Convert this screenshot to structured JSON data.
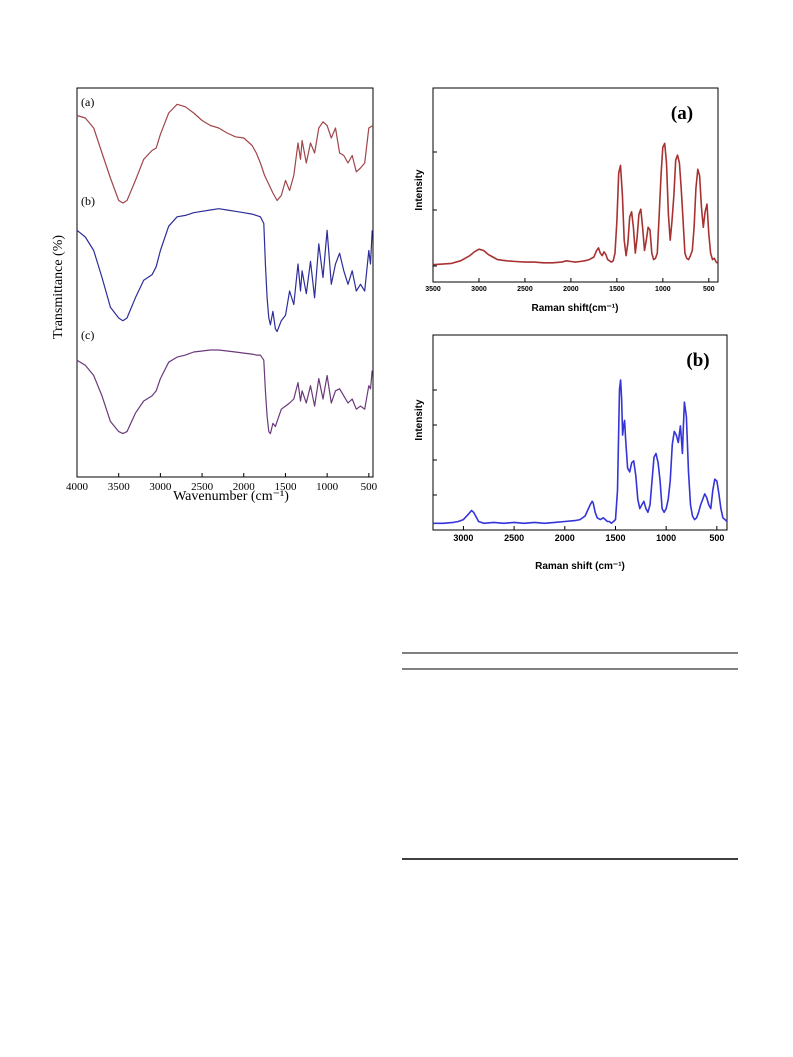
{
  "colors": {
    "ftir_a": "#a0464a",
    "ftir_b": "#2d2d9a",
    "ftir_c": "#6a3a7a",
    "raman_a": "#a83232",
    "raman_b": "#3434d8",
    "axis": "#000000"
  },
  "chart_data": [
    {
      "type": "line",
      "xlabel": "Wavenumber (cm⁻¹)",
      "ylabel": "Transmittance (%)",
      "xlim": [
        4000,
        450
      ],
      "x_ticks": [
        "4000",
        "3500",
        "3000",
        "2500",
        "2000",
        "1500",
        "1000",
        "500"
      ],
      "x_tick_values": [
        4000,
        3500,
        3000,
        2500,
        2000,
        1500,
        1000,
        500
      ],
      "y_scale": "arbitrary units, curves stacked with offsets",
      "grid": false,
      "series": [
        {
          "name": "(a)",
          "x": [
            4000,
            3900,
            3800,
            3700,
            3600,
            3500,
            3450,
            3400,
            3300,
            3200,
            3100,
            3050,
            3000,
            2900,
            2800,
            2700,
            2600,
            2500,
            2400,
            2300,
            2200,
            2100,
            2000,
            1900,
            1850,
            1800,
            1750,
            1700,
            1650,
            1600,
            1550,
            1500,
            1450,
            1400,
            1350,
            1320,
            1300,
            1250,
            1200,
            1150,
            1100,
            1050,
            1000,
            950,
            900,
            850,
            800,
            750,
            700,
            650,
            600,
            550,
            500,
            450
          ],
          "y": [
            0.9,
            0.88,
            0.8,
            0.6,
            0.4,
            0.22,
            0.2,
            0.22,
            0.38,
            0.55,
            0.62,
            0.64,
            0.75,
            0.92,
            0.99,
            0.97,
            0.92,
            0.86,
            0.82,
            0.8,
            0.76,
            0.73,
            0.72,
            0.66,
            0.6,
            0.52,
            0.42,
            0.35,
            0.28,
            0.22,
            0.26,
            0.38,
            0.3,
            0.42,
            0.68,
            0.55,
            0.7,
            0.52,
            0.68,
            0.6,
            0.8,
            0.85,
            0.82,
            0.72,
            0.8,
            0.6,
            0.58,
            0.52,
            0.58,
            0.45,
            0.48,
            0.52,
            0.8,
            0.82
          ]
        },
        {
          "name": "(b)",
          "x": [
            4000,
            3900,
            3800,
            3700,
            3600,
            3500,
            3450,
            3400,
            3300,
            3200,
            3100,
            3050,
            3000,
            2900,
            2800,
            2700,
            2600,
            2500,
            2400,
            2300,
            2200,
            2100,
            2000,
            1900,
            1850,
            1800,
            1760,
            1740,
            1720,
            1700,
            1680,
            1650,
            1620,
            1600,
            1550,
            1500,
            1450,
            1400,
            1350,
            1320,
            1300,
            1250,
            1200,
            1150,
            1100,
            1050,
            1000,
            950,
            900,
            850,
            800,
            750,
            700,
            650,
            600,
            550,
            500,
            480,
            460
          ],
          "y": [
            0.85,
            0.8,
            0.7,
            0.5,
            0.28,
            0.2,
            0.18,
            0.2,
            0.35,
            0.48,
            0.52,
            0.58,
            0.7,
            0.88,
            0.95,
            0.96,
            0.98,
            0.99,
            1.0,
            1.01,
            1.0,
            0.99,
            0.98,
            0.97,
            0.96,
            0.95,
            0.9,
            0.6,
            0.35,
            0.2,
            0.15,
            0.25,
            0.12,
            0.1,
            0.18,
            0.22,
            0.4,
            0.3,
            0.6,
            0.4,
            0.55,
            0.38,
            0.62,
            0.35,
            0.75,
            0.5,
            0.85,
            0.45,
            0.6,
            0.68,
            0.55,
            0.45,
            0.55,
            0.4,
            0.45,
            0.4,
            0.7,
            0.6,
            0.85
          ]
        },
        {
          "name": "(c)",
          "x": [
            4000,
            3900,
            3800,
            3700,
            3600,
            3500,
            3450,
            3400,
            3300,
            3200,
            3100,
            3050,
            3000,
            2900,
            2800,
            2700,
            2600,
            2500,
            2400,
            2300,
            2200,
            2100,
            2000,
            1900,
            1850,
            1800,
            1760,
            1740,
            1720,
            1700,
            1680,
            1650,
            1620,
            1600,
            1550,
            1500,
            1450,
            1400,
            1350,
            1320,
            1300,
            1250,
            1200,
            1150,
            1100,
            1050,
            1000,
            950,
            900,
            850,
            800,
            750,
            700,
            650,
            600,
            550,
            500,
            480,
            460
          ],
          "y": [
            0.9,
            0.85,
            0.75,
            0.55,
            0.3,
            0.2,
            0.18,
            0.2,
            0.38,
            0.5,
            0.55,
            0.6,
            0.72,
            0.88,
            0.93,
            0.95,
            0.98,
            0.99,
            1.0,
            1.0,
            0.99,
            0.98,
            0.97,
            0.96,
            0.95,
            0.95,
            0.9,
            0.6,
            0.35,
            0.2,
            0.18,
            0.28,
            0.25,
            0.3,
            0.42,
            0.45,
            0.48,
            0.52,
            0.68,
            0.5,
            0.6,
            0.48,
            0.65,
            0.45,
            0.72,
            0.52,
            0.75,
            0.48,
            0.6,
            0.62,
            0.55,
            0.48,
            0.52,
            0.42,
            0.45,
            0.42,
            0.65,
            0.62,
            0.8
          ]
        }
      ]
    },
    {
      "type": "line",
      "title": "(a)",
      "xlabel": "Raman shift(cm⁻¹)",
      "ylabel": "Intensity",
      "xlim": [
        3500,
        400
      ],
      "x_ticks": [
        "3500",
        "3000",
        "2500",
        "2000",
        "1500",
        "1000",
        "500"
      ],
      "x_tick_values": [
        3500,
        3000,
        2500,
        2000,
        1500,
        1000,
        500
      ],
      "ylim": [
        0,
        1
      ],
      "grid": false,
      "series": [
        {
          "x": [
            3500,
            3300,
            3200,
            3100,
            3050,
            3000,
            2950,
            2900,
            2850,
            2800,
            2700,
            2600,
            2500,
            2400,
            2300,
            2200,
            2100,
            2050,
            2000,
            1950,
            1900,
            1850,
            1800,
            1750,
            1720,
            1700,
            1680,
            1660,
            1640,
            1620,
            1600,
            1580,
            1560,
            1540,
            1520,
            1500,
            1480,
            1460,
            1440,
            1420,
            1400,
            1380,
            1360,
            1340,
            1320,
            1300,
            1280,
            1260,
            1240,
            1220,
            1200,
            1180,
            1160,
            1140,
            1120,
            1100,
            1080,
            1060,
            1040,
            1020,
            1000,
            980,
            960,
            940,
            920,
            900,
            880,
            860,
            840,
            820,
            800,
            780,
            760,
            740,
            720,
            700,
            680,
            660,
            640,
            620,
            600,
            580,
            560,
            540,
            520,
            500,
            480,
            460,
            440,
            420,
            400
          ],
          "y": [
            0.01,
            0.02,
            0.04,
            0.08,
            0.11,
            0.13,
            0.12,
            0.09,
            0.07,
            0.05,
            0.04,
            0.035,
            0.03,
            0.03,
            0.025,
            0.025,
            0.03,
            0.04,
            0.035,
            0.03,
            0.035,
            0.04,
            0.05,
            0.07,
            0.12,
            0.14,
            0.1,
            0.08,
            0.11,
            0.09,
            0.05,
            0.04,
            0.03,
            0.04,
            0.1,
            0.35,
            0.72,
            0.78,
            0.55,
            0.2,
            0.08,
            0.18,
            0.38,
            0.42,
            0.3,
            0.1,
            0.22,
            0.4,
            0.44,
            0.3,
            0.12,
            0.2,
            0.3,
            0.28,
            0.1,
            0.05,
            0.06,
            0.1,
            0.4,
            0.7,
            0.92,
            0.95,
            0.8,
            0.4,
            0.2,
            0.35,
            0.55,
            0.82,
            0.86,
            0.8,
            0.6,
            0.35,
            0.1,
            0.06,
            0.05,
            0.08,
            0.12,
            0.3,
            0.6,
            0.75,
            0.7,
            0.45,
            0.3,
            0.42,
            0.48,
            0.25,
            0.1,
            0.05,
            0.06,
            0.03,
            0.02
          ]
        }
      ]
    },
    {
      "type": "line",
      "title": "(b)",
      "xlabel": "Raman shift (cm⁻¹)",
      "ylabel": "Intensity",
      "xlim": [
        3300,
        400
      ],
      "x_ticks": [
        "3000",
        "2500",
        "2000",
        "1500",
        "1000",
        "500"
      ],
      "x_tick_values": [
        3000,
        2500,
        2000,
        1500,
        1000,
        500
      ],
      "ylim": [
        0,
        1
      ],
      "grid": false,
      "series": [
        {
          "x": [
            3300,
            3200,
            3100,
            3050,
            3000,
            2950,
            2920,
            2900,
            2870,
            2850,
            2800,
            2700,
            2600,
            2500,
            2400,
            2300,
            2200,
            2100,
            2000,
            1900,
            1850,
            1800,
            1750,
            1730,
            1720,
            1700,
            1680,
            1650,
            1620,
            1600,
            1580,
            1560,
            1540,
            1520,
            1500,
            1480,
            1460,
            1450,
            1440,
            1430,
            1420,
            1410,
            1400,
            1380,
            1360,
            1340,
            1320,
            1300,
            1280,
            1260,
            1240,
            1220,
            1200,
            1180,
            1160,
            1140,
            1120,
            1100,
            1080,
            1060,
            1040,
            1020,
            1000,
            980,
            960,
            940,
            920,
            900,
            880,
            860,
            850,
            840,
            830,
            820,
            800,
            780,
            760,
            740,
            720,
            700,
            680,
            660,
            640,
            620,
            600,
            580,
            560,
            540,
            520,
            500,
            480,
            460,
            440,
            420,
            400
          ],
          "y": [
            0.02,
            0.02,
            0.025,
            0.03,
            0.04,
            0.07,
            0.09,
            0.08,
            0.05,
            0.03,
            0.02,
            0.025,
            0.02,
            0.025,
            0.02,
            0.025,
            0.02,
            0.025,
            0.03,
            0.035,
            0.04,
            0.06,
            0.12,
            0.14,
            0.13,
            0.08,
            0.05,
            0.04,
            0.05,
            0.04,
            0.03,
            0.03,
            0.02,
            0.03,
            0.04,
            0.2,
            0.75,
            0.8,
            0.7,
            0.5,
            0.55,
            0.58,
            0.48,
            0.32,
            0.3,
            0.35,
            0.36,
            0.28,
            0.15,
            0.1,
            0.12,
            0.14,
            0.1,
            0.08,
            0.12,
            0.25,
            0.38,
            0.4,
            0.35,
            0.25,
            0.1,
            0.08,
            0.1,
            0.15,
            0.25,
            0.45,
            0.52,
            0.5,
            0.46,
            0.55,
            0.48,
            0.4,
            0.55,
            0.68,
            0.6,
            0.3,
            0.12,
            0.06,
            0.04,
            0.05,
            0.08,
            0.12,
            0.15,
            0.18,
            0.16,
            0.12,
            0.1,
            0.2,
            0.26,
            0.25,
            0.18,
            0.1,
            0.05,
            0.04,
            0.03
          ]
        }
      ]
    }
  ],
  "labels": {
    "ftir_a": "(a)",
    "ftir_b": "(b)",
    "ftir_c": "(c)",
    "raman_a_title": "(a)",
    "raman_b_title": "(b)"
  }
}
